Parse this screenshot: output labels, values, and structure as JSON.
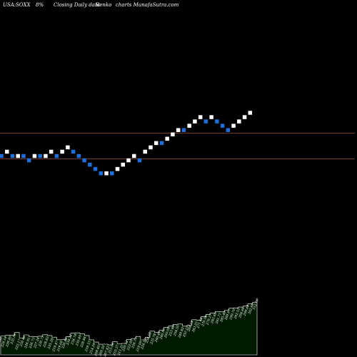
{
  "header": {
    "title": "USA:SOXX",
    "box_size": "8%",
    "description": "Closing Daily data",
    "chart_name": "Renko",
    "watermark": "charts MunafaSutra.com"
  },
  "colors": {
    "background": "#000000",
    "up_brick": "#ffffff",
    "down_brick": "#1e6fd9",
    "reference_line": "#7a3a1a",
    "volume_fill": "#001a00",
    "volume_edge": "#ffffff"
  },
  "chart_data": {
    "type": "renko",
    "title": "USA:SOXX",
    "bricks": [
      {
        "dir": "down",
        "level": 0
      },
      {
        "dir": "up",
        "level": 1
      },
      {
        "dir": "down",
        "level": 0
      },
      {
        "dir": "up",
        "level": 0
      },
      {
        "dir": "down",
        "level": 0
      },
      {
        "dir": "down",
        "level": -1
      },
      {
        "dir": "up",
        "level": 0
      },
      {
        "dir": "down",
        "level": 0
      },
      {
        "dir": "up",
        "level": 0
      },
      {
        "dir": "up",
        "level": 1
      },
      {
        "dir": "down",
        "level": 0
      },
      {
        "dir": "up",
        "level": 1
      },
      {
        "dir": "up",
        "level": 2
      },
      {
        "dir": "down",
        "level": 1
      },
      {
        "dir": "down",
        "level": 0
      },
      {
        "dir": "down",
        "level": -1
      },
      {
        "dir": "down",
        "level": -2
      },
      {
        "dir": "down",
        "level": -3
      },
      {
        "dir": "down",
        "level": -4
      },
      {
        "dir": "up",
        "level": -4
      },
      {
        "dir": "down",
        "level": -4
      },
      {
        "dir": "up",
        "level": -3
      },
      {
        "dir": "up",
        "level": -2
      },
      {
        "dir": "up",
        "level": -1
      },
      {
        "dir": "up",
        "level": 0
      },
      {
        "dir": "down",
        "level": -1
      },
      {
        "dir": "up",
        "level": 1
      },
      {
        "dir": "up",
        "level": 2
      },
      {
        "dir": "up",
        "level": 3
      },
      {
        "dir": "down",
        "level": 3
      },
      {
        "dir": "up",
        "level": 4
      },
      {
        "dir": "up",
        "level": 5
      },
      {
        "dir": "up",
        "level": 6
      },
      {
        "dir": "down",
        "level": 6
      },
      {
        "dir": "up",
        "level": 7
      },
      {
        "dir": "up",
        "level": 8
      },
      {
        "dir": "up",
        "level": 9
      },
      {
        "dir": "down",
        "level": 8
      },
      {
        "dir": "up",
        "level": 9
      },
      {
        "dir": "down",
        "level": 8
      },
      {
        "dir": "down",
        "level": 7
      },
      {
        "dir": "down",
        "level": 6
      },
      {
        "dir": "up",
        "level": 7
      },
      {
        "dir": "up",
        "level": 8
      },
      {
        "dir": "up",
        "level": 9
      },
      {
        "dir": "up",
        "level": 10
      }
    ],
    "reference_lines": [
      186.5,
      222.5
    ],
    "volume_labels": [
      "227.90",
      "229.16",
      "229.89",
      "235.56",
      "223.17",
      "230.40",
      "226.91",
      "226.73",
      "227.24",
      "230.71",
      "228.83",
      "225.28",
      "219.47",
      "219.60",
      "226.49",
      "234.22",
      "234.74",
      "232.49",
      "228.84",
      "219.33",
      "214.29",
      "209.40",
      "209.55",
      "207.82",
      "215.06",
      "210.37",
      "211.21",
      "220.12",
      "222.00",
      "226.77",
      "219.09",
      "224.52",
      "238.65",
      "235.78",
      "240.40",
      "246.97",
      "250.08",
      "253.86",
      "254.55",
      "249.82",
      "252.10",
      "264.14",
      "263.01",
      "271.44",
      "276.04",
      "279.27",
      "282.65",
      "281.71",
      "285.40",
      "289.97",
      "290.70",
      "292.52",
      "294.66",
      "299.44",
      "302.88",
      "312.76"
    ]
  }
}
